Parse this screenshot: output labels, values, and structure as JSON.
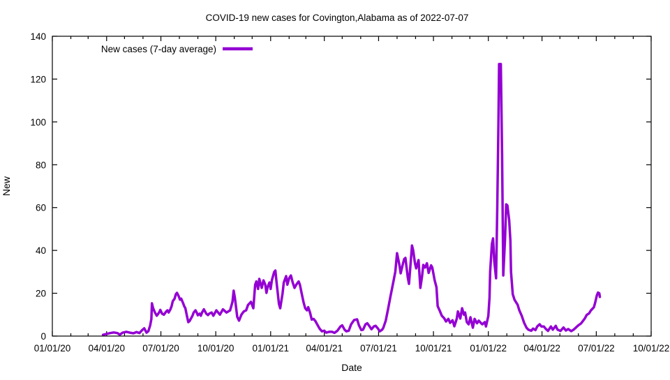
{
  "title": "COVID-19 new cases for Covington,Alabama as of 2022-07-07",
  "chart_data": {
    "type": "line",
    "title": "COVID-19 new cases for Covington,Alabama as of 2022-07-07",
    "xlabel": "Date",
    "ylabel": "New",
    "grid": false,
    "legend": {
      "label": "New cases (7-day average)",
      "position": "top-left-inside"
    },
    "background_color": "#ffffff",
    "frame_color": "#000000",
    "x_unit": "days since 2020-01-01",
    "x_range_days": [
      0,
      1004
    ],
    "ylim": [
      0,
      140
    ],
    "y_ticks": [
      0,
      20,
      40,
      60,
      80,
      100,
      120,
      140
    ],
    "x_major_ticks": [
      {
        "day": 0,
        "label": "01/01/20"
      },
      {
        "day": 91,
        "label": "04/01/20"
      },
      {
        "day": 182,
        "label": "07/01/20"
      },
      {
        "day": 274,
        "label": "10/01/20"
      },
      {
        "day": 366,
        "label": "01/01/21"
      },
      {
        "day": 456,
        "label": "04/01/21"
      },
      {
        "day": 547,
        "label": "07/01/21"
      },
      {
        "day": 639,
        "label": "10/01/21"
      },
      {
        "day": 731,
        "label": "01/01/22"
      },
      {
        "day": 821,
        "label": "04/01/22"
      },
      {
        "day": 912,
        "label": "07/01/22"
      },
      {
        "day": 1004,
        "label": "10/01/22"
      }
    ],
    "x_minor_tick_days": [
      31,
      60,
      121,
      152,
      213,
      244,
      305,
      335,
      397,
      425,
      486,
      517,
      578,
      609,
      670,
      700,
      762,
      790,
      851,
      882,
      943,
      974
    ],
    "series": [
      {
        "name": "New cases (7-day average)",
        "color": "#9400d3",
        "points": [
          [
            85,
            0.6
          ],
          [
            91,
            1.0
          ],
          [
            97,
            1.4
          ],
          [
            103,
            1.7
          ],
          [
            109,
            1.4
          ],
          [
            113,
            0.7
          ],
          [
            118,
            1.6
          ],
          [
            124,
            2.0
          ],
          [
            130,
            1.6
          ],
          [
            136,
            1.3
          ],
          [
            141,
            1.9
          ],
          [
            146,
            1.4
          ],
          [
            151,
            2.9
          ],
          [
            154,
            3.6
          ],
          [
            158,
            1.6
          ],
          [
            161,
            2.3
          ],
          [
            164,
            5.0
          ],
          [
            166,
            8.0
          ],
          [
            167,
            15.3
          ],
          [
            169,
            13.0
          ],
          [
            172,
            11.0
          ],
          [
            175,
            9.5
          ],
          [
            179,
            11.0
          ],
          [
            181,
            12.2
          ],
          [
            184,
            10.5
          ],
          [
            187,
            10.0
          ],
          [
            191,
            11.5
          ],
          [
            193,
            12.0
          ],
          [
            195,
            11.0
          ],
          [
            198,
            12.5
          ],
          [
            200,
            14.0
          ],
          [
            202,
            16.3
          ],
          [
            205,
            17.5
          ],
          [
            207,
            19.5
          ],
          [
            209,
            20.2
          ],
          [
            212,
            18.5
          ],
          [
            214,
            17.0
          ],
          [
            216,
            17.5
          ],
          [
            219,
            15.5
          ],
          [
            221,
            14.0
          ],
          [
            223,
            13.0
          ],
          [
            226,
            9.0
          ],
          [
            228,
            6.5
          ],
          [
            230,
            7.0
          ],
          [
            233,
            8.5
          ],
          [
            235,
            9.5
          ],
          [
            237,
            11.0
          ],
          [
            240,
            12.0
          ],
          [
            242,
            11.0
          ],
          [
            244,
            9.7
          ],
          [
            247,
            10.5
          ],
          [
            249,
            9.5
          ],
          [
            251,
            11.0
          ],
          [
            254,
            12.5
          ],
          [
            256,
            11.5
          ],
          [
            258,
            10.5
          ],
          [
            261,
            9.8
          ],
          [
            263,
            10.5
          ],
          [
            267,
            11.0
          ],
          [
            270,
            9.5
          ],
          [
            275,
            12.0
          ],
          [
            281,
            10.0
          ],
          [
            286,
            12.5
          ],
          [
            292,
            11.0
          ],
          [
            298,
            12.0
          ],
          [
            302,
            16.0
          ],
          [
            304,
            21.2
          ],
          [
            306,
            18.0
          ],
          [
            310,
            9.0
          ],
          [
            313,
            7.2
          ],
          [
            317,
            10.0
          ],
          [
            321,
            11.5
          ],
          [
            325,
            12.0
          ],
          [
            328,
            14.5
          ],
          [
            333,
            16.0
          ],
          [
            337,
            13.0
          ],
          [
            340,
            24.0
          ],
          [
            342,
            25.5
          ],
          [
            345,
            22.0
          ],
          [
            347,
            26.7
          ],
          [
            351,
            22.5
          ],
          [
            354,
            26.0
          ],
          [
            357,
            24.0
          ],
          [
            359,
            20.2
          ],
          [
            361,
            23.0
          ],
          [
            364,
            25.0
          ],
          [
            366,
            22.0
          ],
          [
            368,
            26.0
          ],
          [
            372,
            30.0
          ],
          [
            374,
            30.6
          ],
          [
            376,
            25.0
          ],
          [
            380,
            15.0
          ],
          [
            382,
            13.0
          ],
          [
            386,
            20.0
          ],
          [
            388,
            25.0
          ],
          [
            392,
            28.0
          ],
          [
            394,
            24.0
          ],
          [
            397,
            27.0
          ],
          [
            400,
            28.3
          ],
          [
            403,
            25.0
          ],
          [
            406,
            22.5
          ],
          [
            409,
            24.0
          ],
          [
            413,
            25.5
          ],
          [
            415,
            24.0
          ],
          [
            418,
            20.0
          ],
          [
            421,
            16.0
          ],
          [
            424,
            13.0
          ],
          [
            427,
            12.0
          ],
          [
            429,
            13.5
          ],
          [
            432,
            11.0
          ],
          [
            435,
            7.7
          ],
          [
            438,
            8.0
          ],
          [
            441,
            7.0
          ],
          [
            444,
            5.5
          ],
          [
            448,
            3.5
          ],
          [
            452,
            2.2
          ],
          [
            456,
            2.5
          ],
          [
            459,
            1.6
          ],
          [
            464,
            2.0
          ],
          [
            469,
            2.0
          ],
          [
            473,
            1.5
          ],
          [
            478,
            2.5
          ],
          [
            483,
            4.5
          ],
          [
            486,
            5.0
          ],
          [
            490,
            3.0
          ],
          [
            493,
            2.2
          ],
          [
            497,
            2.5
          ],
          [
            501,
            5.5
          ],
          [
            506,
            7.5
          ],
          [
            511,
            7.8
          ],
          [
            514,
            5.0
          ],
          [
            518,
            2.8
          ],
          [
            521,
            3.0
          ],
          [
            525,
            5.5
          ],
          [
            528,
            6.0
          ],
          [
            532,
            4.5
          ],
          [
            535,
            3.2
          ],
          [
            539,
            4.5
          ],
          [
            542,
            4.8
          ],
          [
            546,
            3.5
          ],
          [
            549,
            2.2
          ],
          [
            553,
            3.0
          ],
          [
            555,
            3.9
          ],
          [
            559,
            7.2
          ],
          [
            563,
            12.7
          ],
          [
            567,
            18.6
          ],
          [
            570,
            22.8
          ],
          [
            575,
            30.0
          ],
          [
            578,
            38.7
          ],
          [
            582,
            33.0
          ],
          [
            584,
            29.3
          ],
          [
            588,
            34.0
          ],
          [
            590,
            36.0
          ],
          [
            592,
            36.5
          ],
          [
            596,
            27.3
          ],
          [
            598,
            24.4
          ],
          [
            601,
            35.0
          ],
          [
            603,
            42.3
          ],
          [
            605,
            40.0
          ],
          [
            608,
            34.0
          ],
          [
            610,
            31.6
          ],
          [
            614,
            35.5
          ],
          [
            617,
            22.5
          ],
          [
            620,
            28.0
          ],
          [
            622,
            33.2
          ],
          [
            625,
            32.0
          ],
          [
            628,
            34.0
          ],
          [
            631,
            29.5
          ],
          [
            635,
            33.0
          ],
          [
            637,
            32.0
          ],
          [
            641,
            26.0
          ],
          [
            644,
            22.8
          ],
          [
            646,
            14.0
          ],
          [
            650,
            11.5
          ],
          [
            653,
            9.5
          ],
          [
            657,
            8.3
          ],
          [
            660,
            6.8
          ],
          [
            664,
            8.0
          ],
          [
            667,
            6.2
          ],
          [
            671,
            7.4
          ],
          [
            674,
            4.6
          ],
          [
            678,
            8.0
          ],
          [
            680,
            11.5
          ],
          [
            684,
            8.2
          ],
          [
            687,
            13.0
          ],
          [
            690,
            10.0
          ],
          [
            692,
            11.0
          ],
          [
            695,
            6.5
          ],
          [
            698,
            5.5
          ],
          [
            701,
            8.8
          ],
          [
            705,
            3.9
          ],
          [
            708,
            8.0
          ],
          [
            712,
            6.0
          ],
          [
            715,
            7.2
          ],
          [
            719,
            6.0
          ],
          [
            721,
            5.5
          ],
          [
            725,
            6.5
          ],
          [
            727,
            4.5
          ],
          [
            731,
            9.4
          ],
          [
            733,
            18.0
          ],
          [
            734,
            30.0
          ],
          [
            737,
            43.0
          ],
          [
            739,
            45.6
          ],
          [
            741,
            35.0
          ],
          [
            744,
            27.0
          ],
          [
            746,
            60.0
          ],
          [
            748,
            100.0
          ],
          [
            749,
            127.0
          ],
          [
            752,
            127.0
          ],
          [
            754,
            85.0
          ],
          [
            756,
            28.3
          ],
          [
            759,
            45.0
          ],
          [
            761,
            61.5
          ],
          [
            763,
            61.0
          ],
          [
            766,
            54.0
          ],
          [
            768,
            44.6
          ],
          [
            769,
            30.0
          ],
          [
            772,
            19.5
          ],
          [
            775,
            16.9
          ],
          [
            780,
            14.7
          ],
          [
            783,
            12.0
          ],
          [
            787,
            9.4
          ],
          [
            791,
            6.2
          ],
          [
            795,
            3.9
          ],
          [
            798,
            3.0
          ],
          [
            803,
            2.5
          ],
          [
            806,
            3.5
          ],
          [
            810,
            2.8
          ],
          [
            813,
            4.5
          ],
          [
            817,
            5.5
          ],
          [
            820,
            4.5
          ],
          [
            824,
            4.5
          ],
          [
            827,
            3.5
          ],
          [
            831,
            2.4
          ],
          [
            836,
            4.5
          ],
          [
            839,
            3.0
          ],
          [
            844,
            4.8
          ],
          [
            847,
            3.0
          ],
          [
            852,
            2.4
          ],
          [
            857,
            4.0
          ],
          [
            861,
            2.6
          ],
          [
            865,
            3.3
          ],
          [
            870,
            2.3
          ],
          [
            874,
            3.0
          ],
          [
            878,
            4.0
          ],
          [
            882,
            5.0
          ],
          [
            886,
            5.8
          ],
          [
            889,
            6.8
          ],
          [
            893,
            8.3
          ],
          [
            896,
            9.9
          ],
          [
            900,
            10.6
          ],
          [
            903,
            12.0
          ],
          [
            906,
            12.9
          ],
          [
            908,
            13.5
          ],
          [
            910,
            15.5
          ],
          [
            913,
            19.0
          ],
          [
            915,
            20.3
          ],
          [
            917,
            20.0
          ],
          [
            918,
            18.3
          ]
        ]
      }
    ]
  }
}
